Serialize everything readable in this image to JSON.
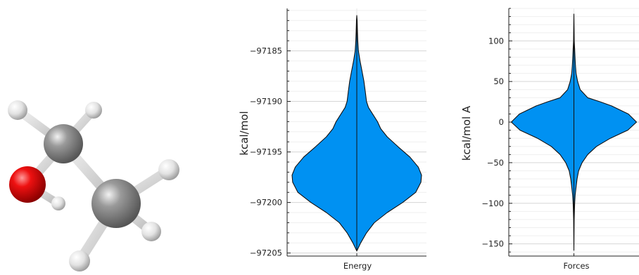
{
  "molecule": {
    "name": "ethanol",
    "colors": {
      "carbon": "#8c8c8c",
      "oxygen": "#e8101a",
      "hydrogen": "#e6e6e6",
      "bond": "#d9d9d9"
    },
    "atoms": [
      "H",
      "H",
      "C",
      "O",
      "H",
      "C",
      "H",
      "H",
      "H"
    ]
  },
  "chart_data": [
    {
      "type": "violin",
      "title": "",
      "xlabel": "",
      "ylabel": "kcal/mol",
      "categories": [
        "Energy"
      ],
      "yticks": [
        -97205,
        -97200,
        -97195,
        -97190,
        -97185
      ],
      "ylim": [
        -97205.3,
        -97180.8
      ],
      "grid": true,
      "legend": "none",
      "color": "#0091f2",
      "range": [
        -97204.8,
        -97181.5
      ],
      "density": [
        [
          -97204.8,
          0.0
        ],
        [
          -97204.0,
          0.06
        ],
        [
          -97203.0,
          0.15
        ],
        [
          -97202.0,
          0.27
        ],
        [
          -97201.0,
          0.47
        ],
        [
          -97200.0,
          0.71
        ],
        [
          -97199.0,
          0.91
        ],
        [
          -97198.0,
          0.99
        ],
        [
          -97197.3,
          1.0
        ],
        [
          -97196.5,
          0.95
        ],
        [
          -97195.5,
          0.82
        ],
        [
          -97194.5,
          0.64
        ],
        [
          -97193.5,
          0.47
        ],
        [
          -97192.7,
          0.37
        ],
        [
          -97192.0,
          0.32
        ],
        [
          -97191.3,
          0.25
        ],
        [
          -97190.6,
          0.18
        ],
        [
          -97190.0,
          0.15
        ],
        [
          -97189.0,
          0.13
        ],
        [
          -97188.0,
          0.11
        ],
        [
          -97187.0,
          0.08
        ],
        [
          -97186.0,
          0.05
        ],
        [
          -97185.0,
          0.025
        ],
        [
          -97184.0,
          0.015
        ],
        [
          -97183.0,
          0.01
        ],
        [
          -97182.0,
          0.005
        ],
        [
          -97181.5,
          0.0
        ]
      ]
    },
    {
      "type": "violin",
      "title": "",
      "xlabel": "",
      "ylabel": "kcal/mol A",
      "categories": [
        "Forces"
      ],
      "yticks": [
        -150,
        -100,
        -50,
        0,
        50,
        100
      ],
      "ylim": [
        -165,
        140
      ],
      "grid": true,
      "legend": "none",
      "color": "#0091f2",
      "range": [
        -158,
        133
      ],
      "density": [
        [
          -158,
          0.0
        ],
        [
          -120,
          0.005
        ],
        [
          -100,
          0.012
        ],
        [
          -90,
          0.02
        ],
        [
          -80,
          0.035
        ],
        [
          -70,
          0.05
        ],
        [
          -60,
          0.075
        ],
        [
          -50,
          0.13
        ],
        [
          -40,
          0.22
        ],
        [
          -30,
          0.36
        ],
        [
          -20,
          0.58
        ],
        [
          -10,
          0.86
        ],
        [
          0,
          1.0
        ],
        [
          10,
          0.87
        ],
        [
          20,
          0.6
        ],
        [
          25,
          0.42
        ],
        [
          30,
          0.22
        ],
        [
          40,
          0.1
        ],
        [
          50,
          0.06
        ],
        [
          60,
          0.035
        ],
        [
          70,
          0.025
        ],
        [
          80,
          0.018
        ],
        [
          90,
          0.012
        ],
        [
          100,
          0.006
        ],
        [
          115,
          0.003
        ],
        [
          133,
          0.0
        ]
      ]
    }
  ]
}
